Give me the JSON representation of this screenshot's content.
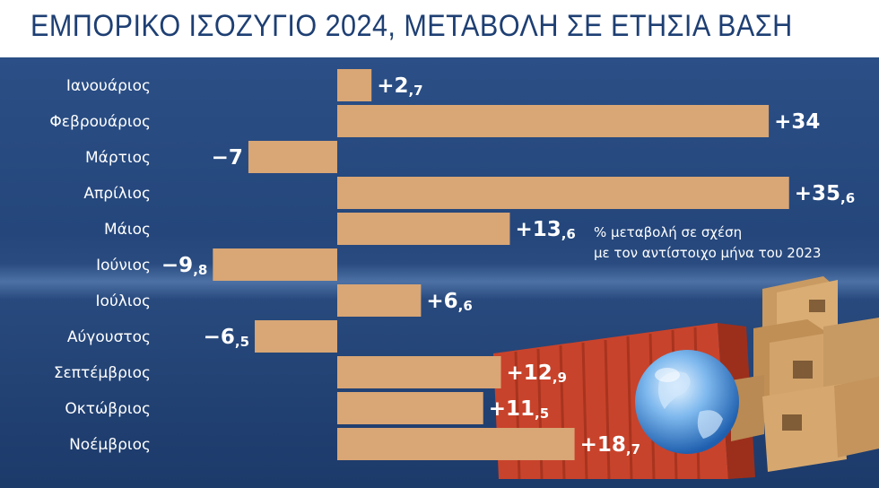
{
  "title": "ΕΜΠΟΡΙΚΟ ΙΣΟΖΥΓΙΟ 2024, ΜΕΤΑΒΟΛΗ ΣΕ ΕΤΗΣΙΑ ΒΑΣΗ",
  "note": {
    "line1": "% μεταβολή σε σχέση",
    "line2": "με τον αντίστοιχο μήνα του 2023"
  },
  "colors": {
    "bar": "#d9a675",
    "background": "#24467b",
    "title": "#1e3f73"
  },
  "chart_data": {
    "type": "bar",
    "orientation": "horizontal",
    "title": "ΕΜΠΟΡΙΚΟ ΙΣΟΖΥΓΙΟ 2024, ΜΕΤΑΒΟΛΗ ΣΕ ΕΤΗΣΙΑ ΒΑΣΗ",
    "categories": [
      "Ιανουάριος",
      "Φεβρουάριος",
      "Μάρτιος",
      "Απρίλιος",
      "Μάιος",
      "Ιούνιος",
      "Ιούλιος",
      "Αύγουστος",
      "Σεπτέμβριος",
      "Οκτώβριος",
      "Νοέμβριος"
    ],
    "values": [
      2.7,
      34,
      -7,
      35.6,
      13.6,
      -9.8,
      6.6,
      -6.5,
      12.9,
      11.5,
      18.7
    ],
    "labels": [
      {
        "main": "+2",
        "dec": ",7"
      },
      {
        "main": "+34",
        "dec": ""
      },
      {
        "main": "−7",
        "dec": ""
      },
      {
        "main": "+35",
        "dec": ",6"
      },
      {
        "main": "+13",
        "dec": ",6"
      },
      {
        "main": "−9",
        "dec": ",8"
      },
      {
        "main": "+6",
        "dec": ",6"
      },
      {
        "main": "−6",
        "dec": ",5"
      },
      {
        "main": "+12",
        "dec": ",9"
      },
      {
        "main": "+11",
        "dec": ",5"
      },
      {
        "main": "+18",
        "dec": ",7"
      }
    ],
    "unit": "%",
    "xlim": [
      -10,
      36
    ],
    "grid": false,
    "legend": "none"
  }
}
